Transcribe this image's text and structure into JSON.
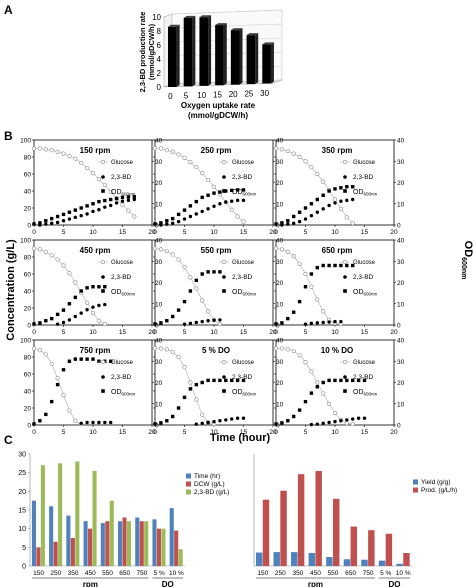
{
  "panel_labels": [
    "A",
    "B",
    "C"
  ],
  "chart_data": [
    {
      "type": "bar",
      "panel": "A",
      "ylabel": "2,3-BD production rate (mmol/gDCW/h)",
      "xlabel": "Oxygen uptake rate (mmol/gDCW/h)",
      "categories": [
        0,
        5,
        10,
        15,
        20,
        25,
        30
      ],
      "values": [
        8.6,
        9.8,
        9.8,
        8.6,
        7.8,
        7.0,
        5.6
      ],
      "ylim": [
        0,
        10
      ],
      "yticks": [
        0,
        2,
        4,
        6,
        8,
        10
      ],
      "color": "#000000"
    },
    {
      "type": "scatter",
      "panel": "B",
      "ylabel": "Concentration (g/L)",
      "ylabel_right": "OD600nm",
      "xlabel": "Time (hour)",
      "xlim": [
        0,
        20
      ],
      "xticks": [
        0,
        5,
        10,
        15,
        20
      ],
      "ylim_left": [
        0,
        100
      ],
      "yticks_left": [
        0,
        20,
        40,
        60,
        80,
        100
      ],
      "ylim_right": [
        0,
        40
      ],
      "yticks_right": [
        0,
        10,
        20,
        30,
        40
      ],
      "legend": [
        "Glucose",
        "2,3-BD",
        "OD600nm"
      ],
      "conditions": [
        "150 rpm",
        "250 rpm",
        "350 rpm",
        "450 rpm",
        "550 rpm",
        "650 rpm",
        "750 rpm",
        "5 % DO",
        "10 % DO"
      ],
      "subplots": [
        {
          "title": "150 rpm",
          "glucose": {
            "x": [
              0,
              1,
              2,
              3,
              4,
              5,
              6,
              7,
              8,
              9,
              10,
              11,
              12,
              13,
              14,
              15,
              16,
              17
            ],
            "y": [
              90,
              90,
              89,
              88,
              86,
              84,
              81,
              78,
              73,
              67,
              61,
              54,
              47,
              39,
              31,
              24,
              17,
              10
            ]
          },
          "bd": {
            "x": [
              1,
              2,
              3,
              4,
              5,
              6,
              7,
              8,
              9,
              10,
              11,
              12,
              13,
              14,
              15,
              16,
              17
            ],
            "y": [
              0,
              1,
              2,
              3,
              5,
              7,
              9,
              11,
              13,
              16,
              18,
              21,
              23,
              26,
              28,
              29,
              30
            ]
          },
          "od": {
            "x": [
              0,
              1,
              2,
              3,
              4,
              5,
              6,
              7,
              8,
              9,
              10,
              11,
              12,
              13,
              14,
              15,
              16,
              17
            ],
            "y": [
              0.5,
              1,
              2,
              3,
              4,
              5,
              6,
              7,
              8,
              9,
              10,
              11,
              11.5,
              12,
              12.5,
              13,
              13.2,
              13.3
            ]
          }
        },
        {
          "title": "250 rpm",
          "glucose": {
            "x": [
              0,
              1,
              2,
              3,
              4,
              5,
              6,
              7,
              8,
              9,
              10,
              11,
              12,
              13,
              14,
              15
            ],
            "y": [
              90,
              90,
              88,
              86,
              83,
              79,
              74,
              68,
              61,
              53,
              45,
              36,
              27,
              18,
              10,
              4
            ]
          },
          "bd": {
            "x": [
              1,
              2,
              3,
              4,
              5,
              6,
              7,
              8,
              9,
              10,
              11,
              12,
              13,
              14,
              15
            ],
            "y": [
              0,
              1,
              2,
              4,
              7,
              10,
              13,
              16,
              19,
              22,
              25,
              27,
              28,
              29,
              29
            ]
          },
          "od": {
            "x": [
              0,
              1,
              2,
              3,
              4,
              5,
              6,
              7,
              8,
              9,
              10,
              11,
              12,
              13,
              14,
              15
            ],
            "y": [
              0.5,
              1,
              2,
              3,
              5,
              7,
              9,
              11,
              13,
              14,
              15,
              15.5,
              16,
              16.3,
              16.5,
              16.5
            ]
          }
        },
        {
          "title": "350 rpm",
          "glucose": {
            "x": [
              0,
              1,
              2,
              3,
              4,
              5,
              6,
              7,
              8,
              9,
              10,
              11,
              12,
              13
            ],
            "y": [
              90,
              89,
              87,
              84,
              80,
              75,
              68,
              60,
              51,
              41,
              30,
              19,
              9,
              2
            ]
          },
          "bd": {
            "x": [
              1,
              2,
              3,
              4,
              5,
              6,
              7,
              8,
              9,
              10,
              11,
              12,
              13
            ],
            "y": [
              0,
              1,
              2,
              4,
              7,
              11,
              15,
              19,
              23,
              26,
              28,
              29,
              30
            ]
          },
          "od": {
            "x": [
              0,
              1,
              2,
              3,
              4,
              5,
              6,
              7,
              8,
              9,
              10,
              11,
              12,
              13
            ],
            "y": [
              0.5,
              1,
              2,
              4,
              6,
              8,
              10,
              12,
              14,
              16,
              17,
              17.5,
              18,
              18
            ]
          }
        },
        {
          "title": "450 rpm",
          "glucose": {
            "x": [
              0,
              1,
              2,
              3,
              4,
              5,
              6,
              7,
              8,
              9,
              10,
              11,
              12
            ],
            "y": [
              90,
              89,
              86,
              82,
              77,
              70,
              61,
              50,
              38,
              26,
              14,
              5,
              1
            ]
          },
          "bd": {
            "x": [
              4,
              5,
              6,
              7,
              8,
              9,
              10,
              11,
              12
            ],
            "y": [
              1,
              3,
              6,
              10,
              14,
              18,
              21,
              23,
              24
            ]
          },
          "od": {
            "x": [
              0,
              1,
              2,
              3,
              4,
              5,
              6,
              7,
              8,
              9,
              10,
              11,
              12
            ],
            "y": [
              0.5,
              1,
              2,
              3,
              5,
              7,
              10,
              13,
              16,
              17.5,
              18,
              18,
              18
            ]
          }
        },
        {
          "title": "550 rpm",
          "glucose": {
            "x": [
              0,
              1,
              2,
              3,
              4,
              5,
              6,
              7,
              8,
              9,
              10,
              11
            ],
            "y": [
              90,
              89,
              87,
              83,
              77,
              68,
              56,
              43,
              29,
              16,
              6,
              1
            ]
          },
          "bd": {
            "x": [
              5,
              6,
              7,
              8,
              9,
              10,
              11
            ],
            "y": [
              1,
              2,
              3,
              4,
              5,
              5.5,
              6
            ]
          },
          "od": {
            "x": [
              0,
              1,
              2,
              3,
              4,
              5,
              6,
              7,
              8,
              9,
              10,
              11
            ],
            "y": [
              0.5,
              1,
              2,
              4,
              7,
              11,
              16,
              21,
              24,
              25,
              25,
              25
            ]
          }
        },
        {
          "title": "650 rpm",
          "glucose": {
            "x": [
              0,
              1,
              2,
              3,
              4,
              5,
              6,
              7,
              8,
              9,
              10,
              11
            ],
            "y": [
              90,
              89,
              86,
              81,
              72,
              60,
              45,
              30,
              16,
              6,
              2,
              1
            ]
          },
          "bd": {
            "x": [
              5,
              6,
              7,
              8,
              9,
              10,
              11
            ],
            "y": [
              1,
              2,
              2.5,
              3,
              3.5,
              4,
              4
            ]
          },
          "od": {
            "x": [
              0,
              1,
              2,
              3,
              4,
              5,
              6,
              7,
              8,
              9,
              10,
              11,
              12,
              13
            ],
            "y": [
              0.5,
              1,
              3,
              6,
              11,
              18,
              24,
              27,
              28,
              28,
              28,
              28,
              28,
              28
            ]
          }
        },
        {
          "title": "750 rpm",
          "glucose": {
            "x": [
              0,
              1,
              2,
              3,
              4,
              5,
              6,
              7,
              8
            ],
            "y": [
              90,
              88,
              83,
              72,
              55,
              35,
              17,
              5,
              1
            ]
          },
          "bd": {
            "x": [
              8,
              9,
              10,
              11,
              12,
              13
            ],
            "y": [
              2,
              3,
              3,
              3,
              3,
              3
            ]
          },
          "od": {
            "x": [
              0,
              1,
              2,
              3,
              4,
              5,
              6,
              7,
              8,
              9,
              10,
              11,
              12,
              13
            ],
            "y": [
              0.5,
              2,
              5,
              11,
              19,
              26,
              30,
              31,
              31,
              31,
              31,
              30,
              30,
              30
            ]
          }
        },
        {
          "title": "5 % DO",
          "glucose": {
            "x": [
              0,
              1,
              2,
              3,
              4,
              5,
              6,
              7,
              8,
              9,
              10
            ],
            "y": [
              90,
              90,
              89,
              86,
              80,
              68,
              50,
              30,
              12,
              3,
              1
            ]
          },
          "bd": {
            "x": [
              7,
              8,
              9,
              10,
              11,
              12,
              13,
              14,
              15
            ],
            "y": [
              1,
              2,
              3,
              4,
              5,
              6,
              7,
              8,
              8
            ]
          },
          "od": {
            "x": [
              0,
              1,
              2,
              3,
              4,
              5,
              6,
              7,
              8,
              9,
              10,
              11,
              12,
              13,
              14,
              15
            ],
            "y": [
              0.5,
              1,
              2,
              4,
              8,
              13,
              17,
              19,
              20,
              21,
              21,
              21,
              21,
              21,
              21,
              21
            ]
          }
        },
        {
          "title": "10 % DO",
          "glucose": {
            "x": [
              0,
              1,
              2,
              3,
              4,
              5,
              6,
              7,
              8,
              9,
              10,
              11,
              12,
              13
            ],
            "y": [
              90,
              90,
              89,
              87,
              82,
              74,
              63,
              50,
              37,
              25,
              14,
              6,
              2,
              1
            ]
          },
          "bd": {
            "x": [
              6,
              7,
              8,
              9,
              10,
              11,
              12,
              13,
              14,
              15
            ],
            "y": [
              0.5,
              1,
              2,
              3,
              4,
              5,
              6,
              7,
              8,
              8
            ]
          },
          "od": {
            "x": [
              0,
              1,
              2,
              3,
              4,
              5,
              6,
              7,
              8,
              9,
              10,
              11,
              12,
              13,
              14,
              15
            ],
            "y": [
              0.5,
              1,
              2,
              4,
              7,
              11,
              15,
              18,
              20,
              21,
              21,
              21,
              21,
              21,
              21,
              21
            ]
          }
        }
      ]
    },
    {
      "type": "bar",
      "panel": "C-left",
      "categories": [
        "150",
        "250",
        "350",
        "450",
        "550",
        "650",
        "750",
        "5 %",
        "10 %"
      ],
      "groups": [
        {
          "label": "rpm",
          "span": 7
        },
        {
          "label": "DO",
          "span": 2
        }
      ],
      "ylim": [
        0,
        30
      ],
      "yticks": [
        0,
        5,
        10,
        15,
        20,
        25,
        30
      ],
      "series": [
        {
          "name": "Time (hr)",
          "color": "#4f81bd",
          "values": [
            17.5,
            16,
            13.5,
            12,
            11.5,
            12,
            13,
            12.5,
            15.5
          ]
        },
        {
          "name": "DCW (g/L)",
          "color": "#c0504d",
          "values": [
            5,
            6.5,
            7.5,
            10,
            12,
            13,
            12,
            10,
            9.5
          ]
        },
        {
          "name": "2,3-BD (g/L)",
          "color": "#9bbb59",
          "values": [
            27,
            27.5,
            28,
            25.5,
            17.5,
            12,
            12,
            10,
            4.5
          ]
        }
      ]
    },
    {
      "type": "bar",
      "panel": "C-right",
      "categories": [
        "150",
        "250",
        "350",
        "450",
        "550",
        "650",
        "750",
        "5 %",
        "10 %"
      ],
      "groups": [
        {
          "label": "rpm",
          "span": 7
        },
        {
          "label": "DO",
          "span": 2
        }
      ],
      "ylim": [
        0,
        2.5
      ],
      "series": [
        {
          "name": "Yield (g/g)",
          "color": "#4f81bd",
          "values": [
            0.3,
            0.31,
            0.31,
            0.29,
            0.2,
            0.15,
            0.14,
            0.12,
            0.05
          ]
        },
        {
          "name": "Prod. (g/L/h)",
          "color": "#c0504d",
          "values": [
            1.48,
            1.68,
            2.05,
            2.12,
            1.5,
            0.88,
            0.8,
            0.72,
            0.29
          ]
        }
      ]
    }
  ]
}
